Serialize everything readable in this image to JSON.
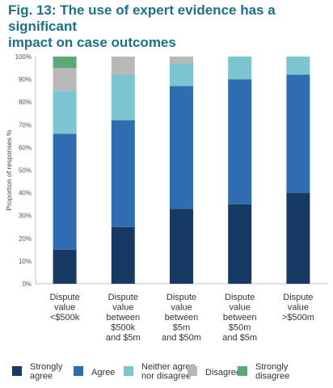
{
  "chart_data": {
    "type": "bar",
    "stacked": true,
    "title": "Fig. 13: The use of expert evidence has a significant\nimpact on case outcomes",
    "ylabel": "Proportion of responses %",
    "ylim": [
      0,
      100
    ],
    "yticks": [
      "0%",
      "10%",
      "20%",
      "30%",
      "40%",
      "50%",
      "60%",
      "70%",
      "80%",
      "90%",
      "100%"
    ],
    "categories": [
      [
        "Dispute",
        "value",
        "<$500k"
      ],
      [
        "Dispute",
        "value",
        "between",
        "$500k",
        "and $5m"
      ],
      [
        "Dispute",
        "value",
        "between",
        "$5m",
        "and $50m"
      ],
      [
        "Dispute",
        "value",
        "between",
        "$50m",
        "and $5m"
      ],
      [
        "Dispute",
        "value",
        ">$500m"
      ]
    ],
    "series": [
      {
        "name": [
          "Strongly",
          "agree"
        ],
        "color": "#163a63",
        "values": [
          15,
          25,
          33,
          35,
          40
        ]
      },
      {
        "name": [
          "Agree"
        ],
        "color": "#2f6db0",
        "values": [
          51,
          47,
          54,
          55,
          52
        ]
      },
      {
        "name": [
          "Neither agree",
          "nor disagree"
        ],
        "color": "#7cc4cf",
        "values": [
          19,
          20,
          10,
          10,
          8
        ]
      },
      {
        "name": [
          "Disagree"
        ],
        "color": "#b8b8b8",
        "values": [
          10,
          8,
          3,
          0,
          0
        ]
      },
      {
        "name": [
          "Strongly",
          "disagree"
        ],
        "color": "#5aaa78",
        "values": [
          5,
          0,
          0,
          0,
          0
        ]
      }
    ],
    "legend": "bottom",
    "grid": false
  }
}
